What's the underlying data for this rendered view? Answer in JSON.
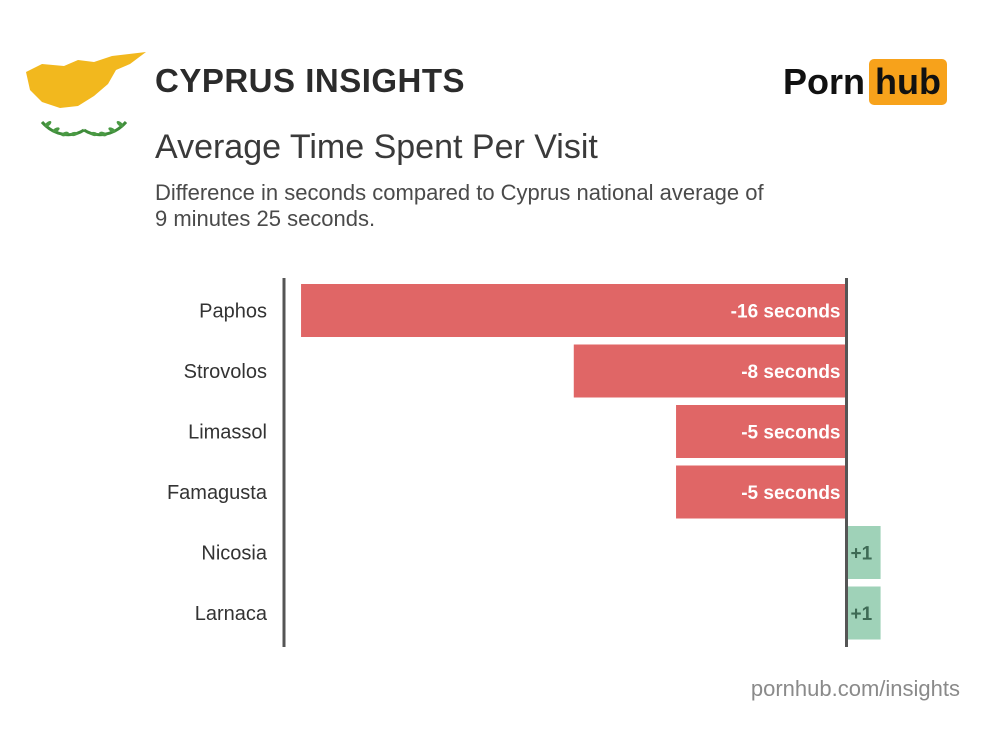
{
  "header": {
    "title": "CYPRUS INSIGHTS",
    "brand_part1": "Porn",
    "brand_part2": "hub"
  },
  "chart_data": {
    "type": "bar",
    "orientation": "horizontal",
    "title": "Average Time Spent Per Visit",
    "subtitle": "Difference in seconds compared to Cyprus national average of 9 minutes 25 seconds.",
    "categories": [
      "Paphos",
      "Strovolos",
      "Limassol",
      "Famagusta",
      "Nicosia",
      "Larnaca"
    ],
    "values": [
      -16,
      -8,
      -5,
      -5,
      1,
      1
    ],
    "value_labels": [
      "-16 seconds",
      "-8 seconds",
      "-5 seconds",
      "-5 seconds",
      "+1",
      "+1"
    ],
    "xlim": [
      -16.5,
      1.1
    ],
    "colors": {
      "negative": "#e06666",
      "positive": "#9fd2b8",
      "axis": "#555555"
    }
  },
  "footer": {
    "source": "pornhub.com/insights"
  },
  "icons": {
    "flag": "cyprus-flag-icon"
  }
}
